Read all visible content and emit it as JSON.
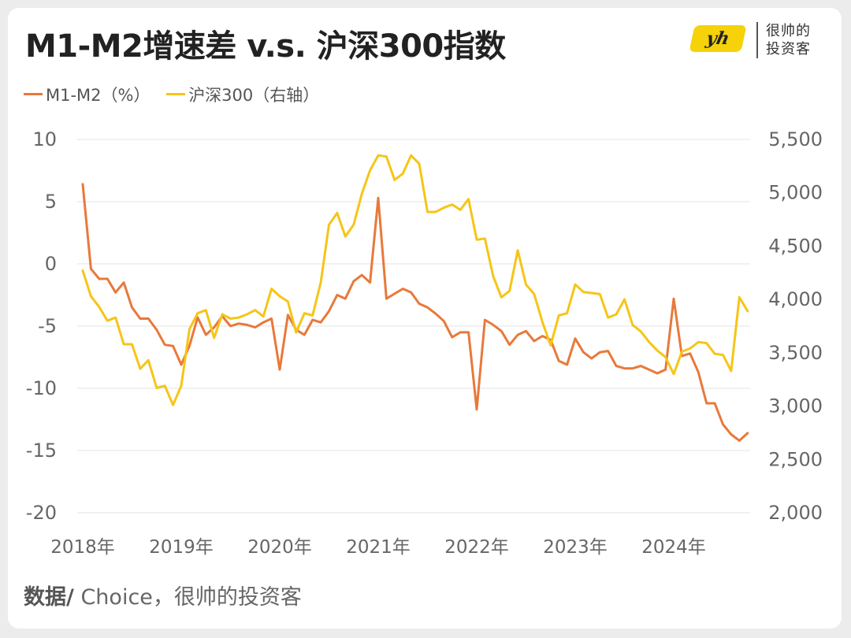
{
  "header": {
    "title": "M1-M2增速差 v.s. 沪深300指数",
    "logo_mark": "yh",
    "logo_text": "很帅的 投资客"
  },
  "legend": [
    {
      "label": "M1-M2（%）",
      "color": "#e8793a"
    },
    {
      "label": "沪深300（右轴）",
      "color": "#f5c518"
    }
  ],
  "footer": {
    "source_label": "数据/",
    "source_text": " Choice，很帅的投资客"
  },
  "chart_data": {
    "type": "line",
    "x_tick_labels": [
      "2018年",
      "2019年",
      "2020年",
      "2021年",
      "2022年",
      "2023年",
      "2024年"
    ],
    "x_start_year": 2018,
    "y_left": {
      "ylim": [
        -20,
        10
      ],
      "ticks": [
        10,
        5,
        0,
        -5,
        -10,
        -15,
        -20
      ]
    },
    "y_right": {
      "ylim": [
        2000,
        5500
      ],
      "ticks": [
        5500,
        5000,
        4500,
        4000,
        3500,
        3000,
        2500,
        2000
      ]
    },
    "grid": true,
    "legend_position": "top-left",
    "series": [
      {
        "name": "M1-M2（%）",
        "axis": "left",
        "color": "#e8793a",
        "values": [
          6.4,
          -0.4,
          -1.2,
          -1.2,
          -2.3,
          -1.5,
          -3.5,
          -4.4,
          -4.4,
          -5.3,
          -6.5,
          -6.6,
          -8.1,
          -6.6,
          -4.3,
          -5.7,
          -5.1,
          -4.2,
          -5.0,
          -4.8,
          -4.9,
          -5.1,
          -4.7,
          -4.4,
          -8.5,
          -4.1,
          -5.3,
          -5.7,
          -4.5,
          -4.7,
          -3.8,
          -2.5,
          -2.8,
          -1.4,
          -0.9,
          -1.5,
          5.3,
          -2.8,
          -2.4,
          -2.0,
          -2.3,
          -3.2,
          -3.5,
          -4.0,
          -4.6,
          -5.9,
          -5.5,
          -5.5,
          -11.7,
          -4.5,
          -4.9,
          -5.4,
          -6.5,
          -5.7,
          -5.4,
          -6.2,
          -5.8,
          -6.1,
          -7.8,
          -8.1,
          -6.0,
          -7.1,
          -7.6,
          -7.1,
          -7.0,
          -8.2,
          -8.4,
          -8.4,
          -8.2,
          -8.5,
          -8.8,
          -8.5,
          -2.8,
          -7.4,
          -7.2,
          -8.7,
          -11.2,
          -11.2,
          -12.9,
          -13.7,
          -14.2,
          -13.6
        ]
      },
      {
        "name": "沪深300（右轴）",
        "axis": "right",
        "color": "#f5c518",
        "values": [
          4270,
          4030,
          3930,
          3800,
          3830,
          3580,
          3580,
          3350,
          3430,
          3170,
          3190,
          3010,
          3190,
          3720,
          3870,
          3900,
          3640,
          3860,
          3820,
          3830,
          3860,
          3900,
          3840,
          4100,
          4030,
          3980,
          3690,
          3870,
          3850,
          4160,
          4700,
          4810,
          4590,
          4700,
          4990,
          5210,
          5350,
          5340,
          5120,
          5180,
          5350,
          5270,
          4820,
          4820,
          4860,
          4890,
          4840,
          4940,
          4560,
          4570,
          4220,
          4020,
          4080,
          4460,
          4140,
          4050,
          3790,
          3570,
          3850,
          3870,
          4140,
          4070,
          4060,
          4050,
          3830,
          3860,
          4000,
          3760,
          3700,
          3600,
          3520,
          3460,
          3300,
          3510,
          3540,
          3600,
          3590,
          3490,
          3480,
          3330,
          4020,
          3890
        ]
      }
    ]
  }
}
